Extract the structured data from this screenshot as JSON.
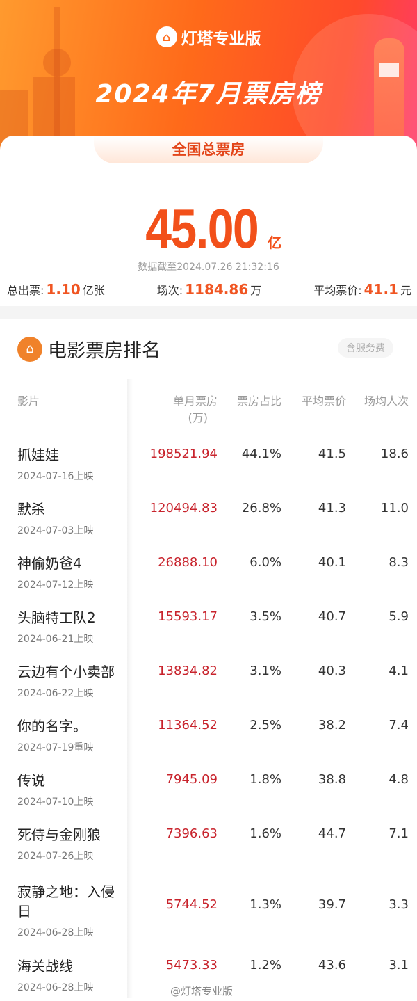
{
  "header": {
    "brand": "灯塔专业版",
    "title": "2024年7月票房榜",
    "tab": "全国总票房"
  },
  "summary": {
    "total": "45.00",
    "total_unit": "亿",
    "as_of": "数据截至2024.07.26 21:32:16",
    "tickets_label": "总出票:",
    "tickets": "1.10",
    "tickets_unit": "亿张",
    "shows_label": "场次:",
    "shows": "1184.86",
    "shows_unit": "万",
    "avg_label": "平均票价:",
    "avg": "41.1",
    "avg_unit": "元"
  },
  "section": {
    "title": "电影票房排名",
    "badge": "含服务费"
  },
  "table": {
    "headers": {
      "film": "影片",
      "box_office": "单月票房",
      "box_office_unit": "(万)",
      "share": "票房占比",
      "avg_price": "平均票价",
      "avg_attendance": "场均人次"
    },
    "rows": [
      {
        "name": "抓娃娃",
        "date": "2024-07-16上映",
        "bo": "198521.94",
        "share": "44.1%",
        "price": "41.5",
        "att": "18.6"
      },
      {
        "name": "默杀",
        "date": "2024-07-03上映",
        "bo": "120494.83",
        "share": "26.8%",
        "price": "41.3",
        "att": "11.0"
      },
      {
        "name": "神偷奶爸4",
        "date": "2024-07-12上映",
        "bo": "26888.10",
        "share": "6.0%",
        "price": "40.1",
        "att": "8.3"
      },
      {
        "name": "头脑特工队2",
        "date": "2024-06-21上映",
        "bo": "15593.17",
        "share": "3.5%",
        "price": "40.7",
        "att": "5.9"
      },
      {
        "name": "云边有个小卖部",
        "date": "2024-06-22上映",
        "bo": "13834.82",
        "share": "3.1%",
        "price": "40.3",
        "att": "4.1"
      },
      {
        "name": "你的名字。",
        "date": "2024-07-19重映",
        "bo": "11364.52",
        "share": "2.5%",
        "price": "38.2",
        "att": "7.4"
      },
      {
        "name": "传说",
        "date": "2024-07-10上映",
        "bo": "7945.09",
        "share": "1.8%",
        "price": "38.8",
        "att": "4.8"
      },
      {
        "name": "死侍与金刚狼",
        "date": "2024-07-26上映",
        "bo": "7396.63",
        "share": "1.6%",
        "price": "44.7",
        "att": "7.1"
      },
      {
        "name": "寂静之地：入侵日",
        "date": "2024-06-28上映",
        "bo": "5744.52",
        "share": "1.3%",
        "price": "39.7",
        "att": "3.3"
      },
      {
        "name": "海关战线",
        "date": "2024-06-28上映",
        "bo": "5473.33",
        "share": "1.2%",
        "price": "43.6",
        "att": "3.1"
      }
    ]
  },
  "watermark": "@灯塔专业版",
  "colors": {
    "accent": "#f2501a",
    "box_office": "#c8232c"
  }
}
